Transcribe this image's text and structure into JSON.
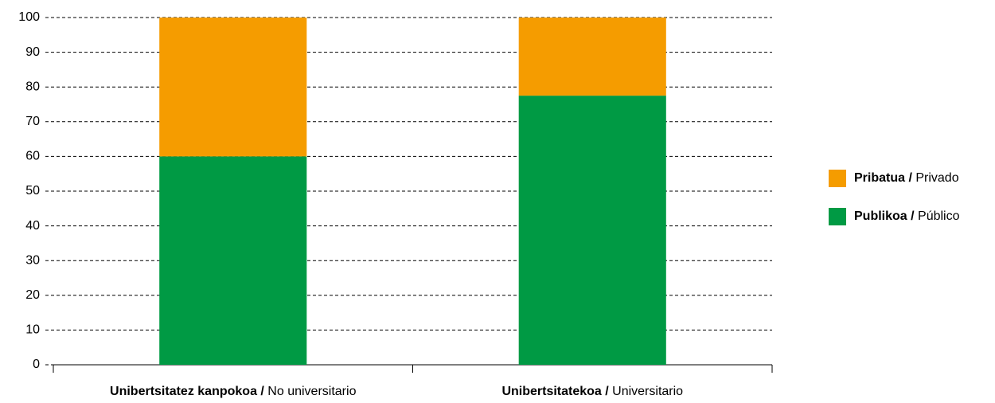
{
  "chart_data": {
    "type": "stacked_bar",
    "categories": [
      "Unibertsitatez kanpokoa / No universitario",
      "Unibertsitatekoa / Universitario"
    ],
    "series": [
      {
        "name": "Publikoa / Público",
        "color": "#009a44",
        "values": [
          60,
          77.5
        ]
      },
      {
        "name": "Pribatua / Privado",
        "color": "#f59c00",
        "values": [
          40,
          22.5
        ]
      }
    ],
    "ylim": [
      0,
      100
    ],
    "yticks": [
      0,
      10,
      20,
      30,
      40,
      50,
      60,
      70,
      80,
      90,
      100
    ],
    "grid": true,
    "legend": "right"
  }
}
